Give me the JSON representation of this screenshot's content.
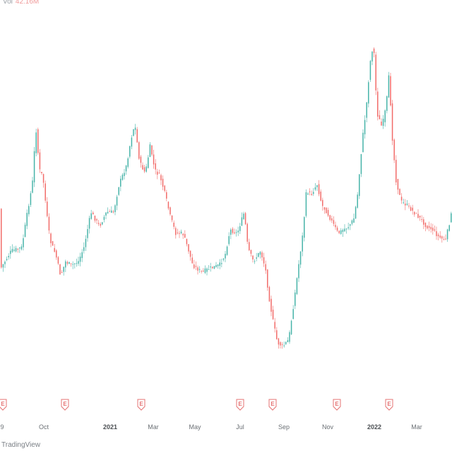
{
  "legend": {
    "volume_label": "Vol",
    "volume_value": "42.16M"
  },
  "branding": {
    "watermark": "TradingView"
  },
  "colors": {
    "up": "#26a69a",
    "down": "#ef5350",
    "tick_text": "#6b7075",
    "earnings_badge": "#e57373"
  },
  "chart_data": {
    "type": "candlestick",
    "x_tick_labels": [
      "9",
      "Oct",
      "2021",
      "Mar",
      "May",
      "Jul",
      "Sep",
      "Nov",
      "2022",
      "Mar"
    ],
    "bold_tick_labels": [
      "2021",
      "2022"
    ],
    "earnings_marker_label": "E",
    "earnings_marker_count": 8,
    "grid": false,
    "legend_placement": "top-left"
  }
}
